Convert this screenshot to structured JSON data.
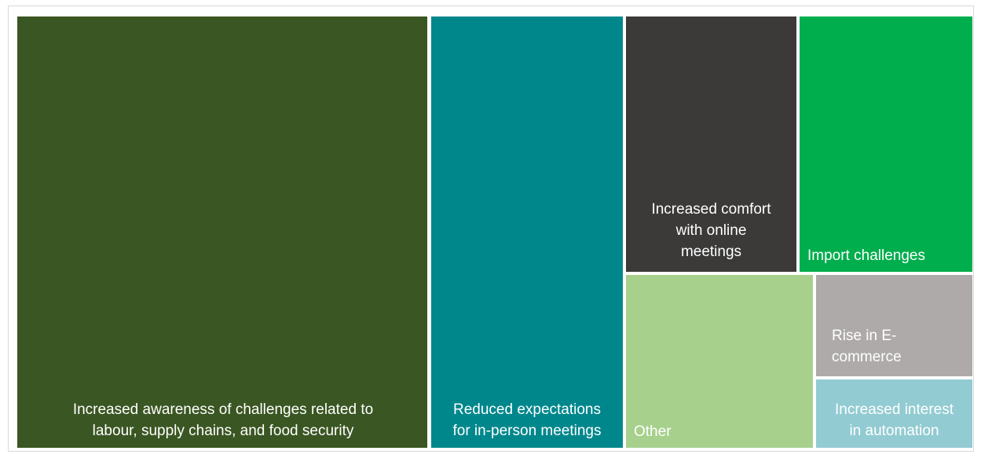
{
  "chart_data": {
    "type": "treemap",
    "items": [
      {
        "label": "Increased awareness of challenges related to\nlabour, supply chains, and food security",
        "color": "#3a5622",
        "align": "center"
      },
      {
        "label": "Reduced expectations\nfor in-person meetings",
        "color": "#00878c",
        "align": "center"
      },
      {
        "label": "Increased comfort\nwith online\nmeetings",
        "color": "#3b3a39",
        "align": "center"
      },
      {
        "label": "Import challenges",
        "color": "#00ae4d",
        "align": "left"
      },
      {
        "label": "Other",
        "color": "#a7d08c",
        "align": "left"
      },
      {
        "label": "Rise in E-\ncommerce",
        "color": "#aeaaaa",
        "align": "left"
      },
      {
        "label": "Increased interest\nin automation",
        "color": "#92cbd2",
        "align": "center"
      }
    ]
  }
}
